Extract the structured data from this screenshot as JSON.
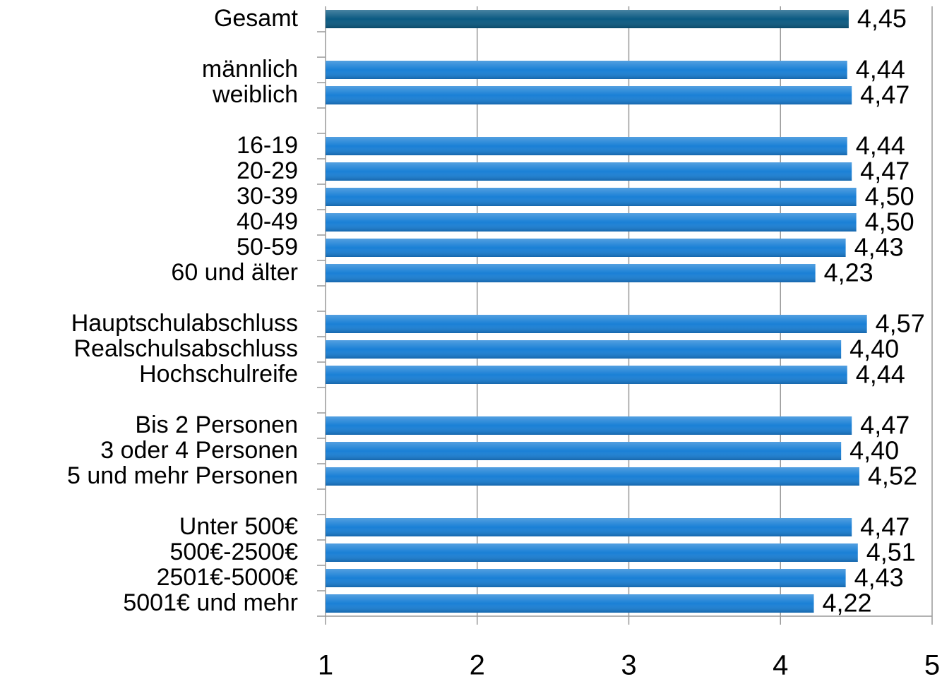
{
  "chart_data": {
    "type": "bar",
    "orientation": "horizontal",
    "categories": [
      "Gesamt",
      null,
      "männlich",
      "weiblich",
      null,
      "16-19",
      "20-29",
      "30-39",
      "40-49",
      "50-59",
      "60 und älter",
      null,
      "Hauptschulabschluss",
      "Realschulsabschluss",
      "Hochschulreife",
      null,
      "Bis 2 Personen",
      "3 oder 4 Personen",
      "5 und mehr Personen",
      null,
      "Unter 500€",
      "500€-2500€",
      "2501€-5000€",
      "5001€ und mehr"
    ],
    "values": [
      4.45,
      null,
      4.44,
      4.47,
      null,
      4.44,
      4.47,
      4.5,
      4.5,
      4.43,
      4.23,
      null,
      4.57,
      4.4,
      4.44,
      null,
      4.47,
      4.4,
      4.52,
      null,
      4.47,
      4.51,
      4.43,
      4.22
    ],
    "value_labels": [
      "4,45",
      null,
      "4,44",
      "4,47",
      null,
      "4,44",
      "4,47",
      "4,50",
      "4,50",
      "4,43",
      "4,23",
      null,
      "4,57",
      "4,40",
      "4,44",
      null,
      "4,47",
      "4,40",
      "4,52",
      null,
      "4,47",
      "4,51",
      "4,43",
      "4,22"
    ],
    "colors": [
      "#0b5a82",
      null,
      "#1a80d6",
      "#1a80d6",
      null,
      "#1a80d6",
      "#1a80d6",
      "#1a80d6",
      "#1a80d6",
      "#1a80d6",
      "#1a80d6",
      null,
      "#1a80d6",
      "#1a80d6",
      "#1a80d6",
      null,
      "#1a80d6",
      "#1a80d6",
      "#1a80d6",
      null,
      "#1a80d6",
      "#1a80d6",
      "#1a80d6",
      "#1a80d6"
    ],
    "xlim": [
      1,
      5
    ],
    "xticks": [
      1,
      2,
      3,
      4,
      5
    ],
    "grid": true
  }
}
